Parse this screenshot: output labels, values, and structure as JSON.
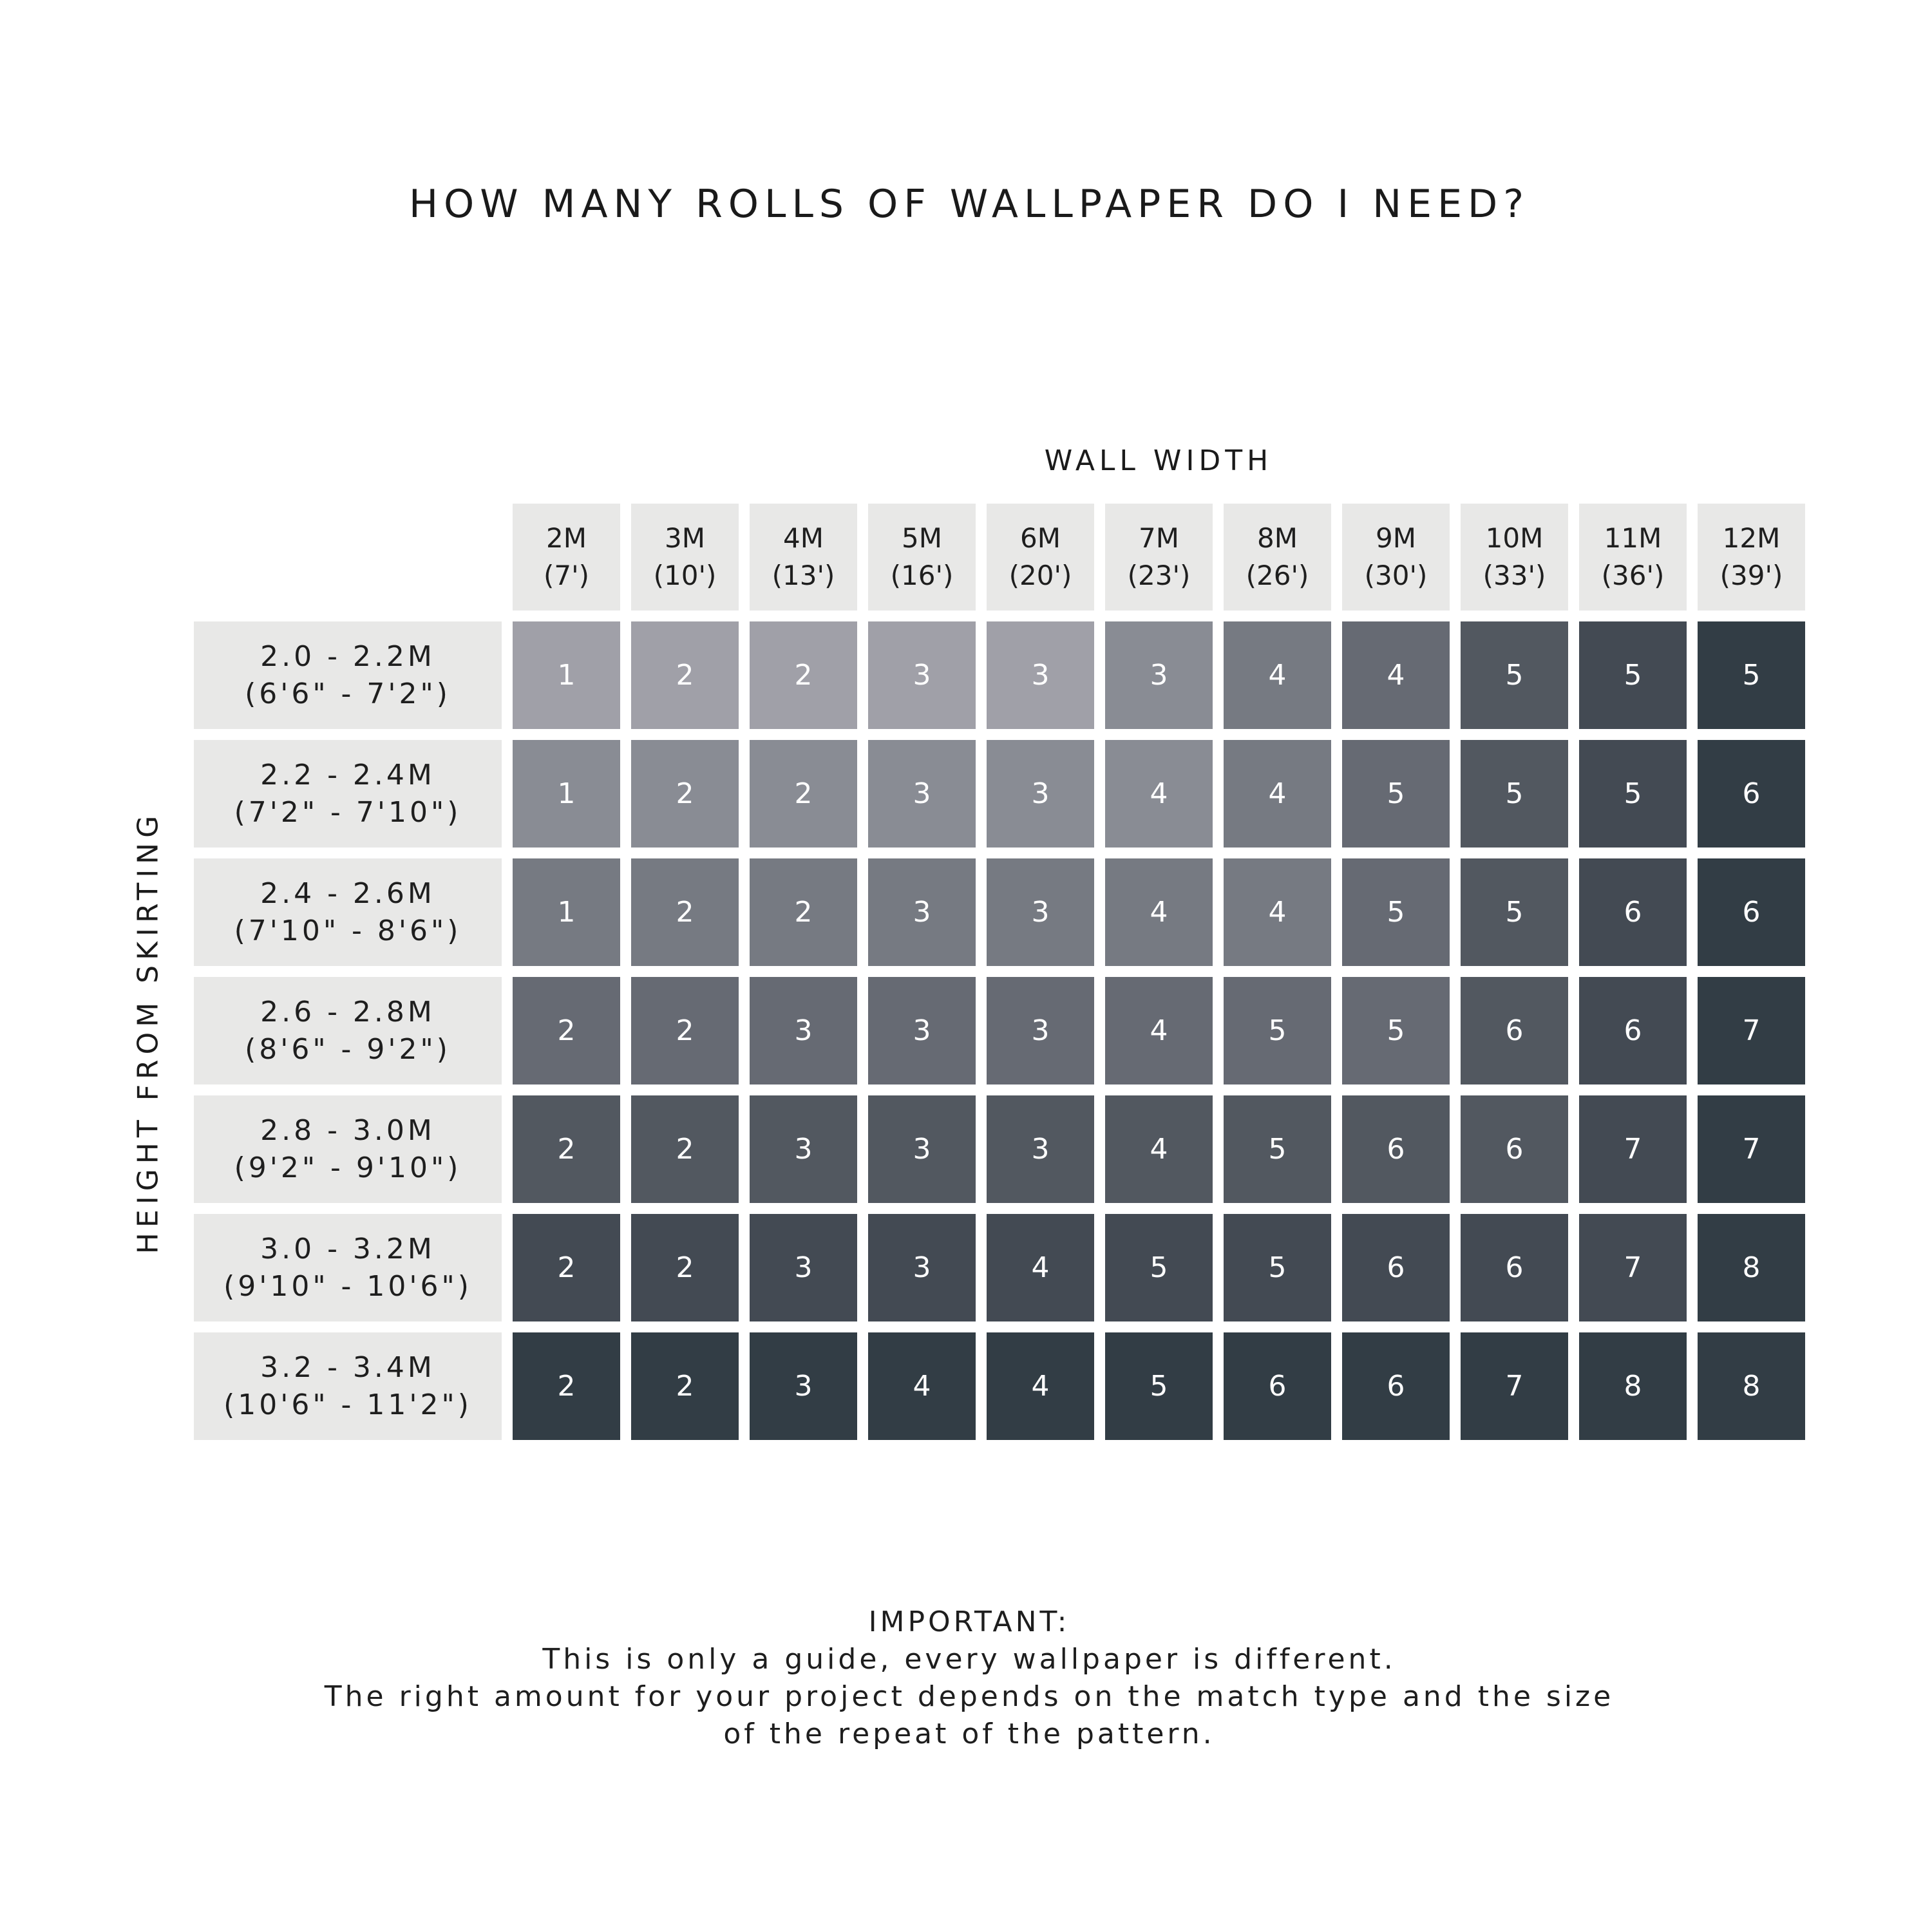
{
  "chart_data": {
    "type": "table",
    "title": "HOW MANY ROLLS OF WALLPAPER DO I NEED?",
    "xlabel": "WALL WIDTH",
    "ylabel": "HEIGHT FROM SKIRTING",
    "columns": [
      {
        "m": "2M",
        "ft": "(7')"
      },
      {
        "m": "3M",
        "ft": "(10')"
      },
      {
        "m": "4M",
        "ft": "(13')"
      },
      {
        "m": "5M",
        "ft": "(16')"
      },
      {
        "m": "6M",
        "ft": "(20')"
      },
      {
        "m": "7M",
        "ft": "(23')"
      },
      {
        "m": "8M",
        "ft": "(26')"
      },
      {
        "m": "9M",
        "ft": "(30')"
      },
      {
        "m": "10M",
        "ft": "(33')"
      },
      {
        "m": "11M",
        "ft": "(36')"
      },
      {
        "m": "12M",
        "ft": "(39')"
      }
    ],
    "rows": [
      {
        "m": "2.0 - 2.2M",
        "ft": "(6'6\" - 7'2\")",
        "values": [
          1,
          2,
          2,
          3,
          3,
          3,
          4,
          4,
          5,
          5,
          5
        ],
        "shades": [
          0,
          0,
          0,
          0,
          0,
          1,
          2,
          3,
          4,
          5,
          6
        ]
      },
      {
        "m": "2.2 - 2.4M",
        "ft": "(7'2\" - 7'10\")",
        "values": [
          1,
          2,
          2,
          3,
          3,
          4,
          4,
          5,
          5,
          5,
          6
        ],
        "shades": [
          1,
          1,
          1,
          1,
          1,
          1,
          2,
          3,
          4,
          5,
          6
        ]
      },
      {
        "m": "2.4 - 2.6M",
        "ft": "(7'10\" - 8'6\")",
        "values": [
          1,
          2,
          2,
          3,
          3,
          4,
          4,
          5,
          5,
          6,
          6
        ],
        "shades": [
          2,
          2,
          2,
          2,
          2,
          2,
          2,
          3,
          4,
          5,
          6
        ]
      },
      {
        "m": "2.6 - 2.8M",
        "ft": "(8'6\" - 9'2\")",
        "values": [
          2,
          2,
          3,
          3,
          3,
          4,
          5,
          5,
          6,
          6,
          7
        ],
        "shades": [
          3,
          3,
          3,
          3,
          3,
          3,
          3,
          3,
          4,
          5,
          6
        ]
      },
      {
        "m": "2.8 - 3.0M",
        "ft": "(9'2\" - 9'10\")",
        "values": [
          2,
          2,
          3,
          3,
          3,
          4,
          5,
          6,
          6,
          7,
          7
        ],
        "shades": [
          4,
          4,
          4,
          4,
          4,
          4,
          4,
          4,
          4,
          5,
          6
        ]
      },
      {
        "m": "3.0 - 3.2M",
        "ft": "(9'10\" - 10'6\")",
        "values": [
          2,
          2,
          3,
          3,
          4,
          5,
          5,
          6,
          6,
          7,
          8
        ],
        "shades": [
          5,
          5,
          5,
          5,
          5,
          5,
          5,
          5,
          5,
          5,
          6
        ]
      },
      {
        "m": "3.2 - 3.4M",
        "ft": "(10'6\" - 11'2\")",
        "values": [
          2,
          2,
          3,
          4,
          4,
          5,
          6,
          6,
          7,
          8,
          8
        ],
        "shades": [
          6,
          6,
          6,
          6,
          6,
          6,
          6,
          6,
          6,
          6,
          6
        ]
      }
    ],
    "palette": [
      "#a0a0a8",
      "#898c94",
      "#767a82",
      "#666a73",
      "#525860",
      "#434a53",
      "#323d45"
    ],
    "header_bg": "#e8e8e7"
  },
  "footer": {
    "heading": "IMPORTANT:",
    "lines": [
      "This is only a guide, every wallpaper is different.",
      "The right amount for your project depends on the match type and the size",
      "of the repeat of the pattern."
    ]
  }
}
